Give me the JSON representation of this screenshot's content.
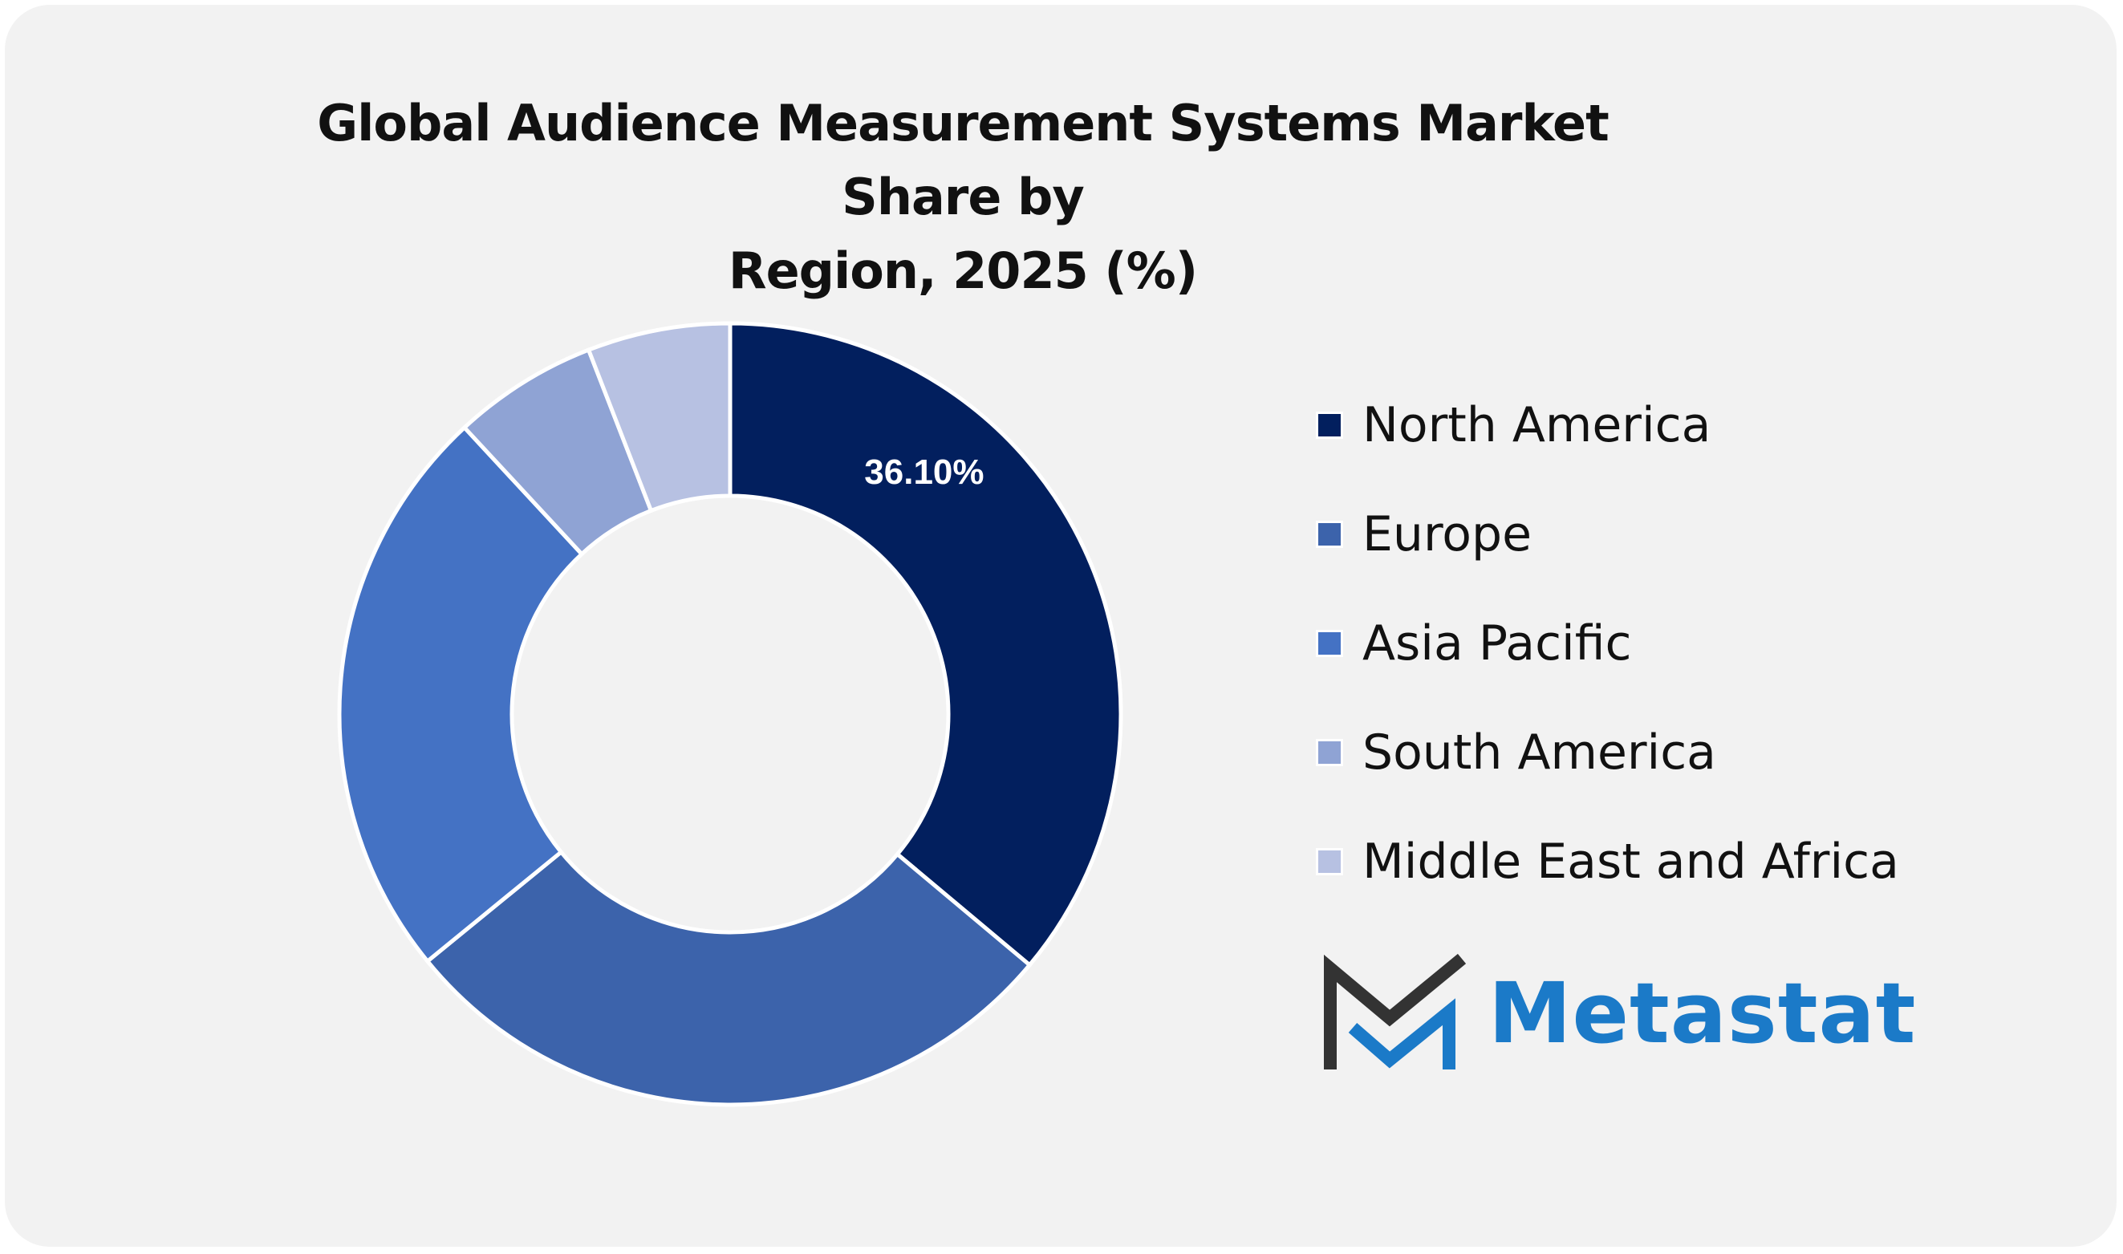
{
  "chart_data": {
    "type": "pie",
    "title": "Global Audience Measurement Systems Market Share by Region, 2025 (%)",
    "title_lines": [
      "Global Audience Measurement Systems Market Share by",
      "Region, 2025 (%)"
    ],
    "categories": [
      "North America",
      "Europe",
      "Asia Pacific",
      "South America",
      "Middle East and Africa"
    ],
    "values": [
      36.1,
      28.0,
      24.0,
      6.0,
      5.9
    ],
    "colors": [
      "#021f5e",
      "#3c63ab",
      "#4472c4",
      "#8fa3d4",
      "#b7c1e2"
    ],
    "data_labels": [
      "36.10%",
      "",
      "",
      "",
      ""
    ],
    "legend_position": "right",
    "donut": true
  },
  "logo": {
    "text": "Metastat",
    "icon": "metastat-m-logo-icon",
    "colors": {
      "dark": "#333333",
      "blue": "#1b7ac8"
    }
  }
}
